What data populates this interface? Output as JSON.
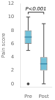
{
  "chart_data": {
    "type": "box",
    "categories": [
      "Pre",
      "Post"
    ],
    "boxes": [
      {
        "whisker_low": 5.0,
        "q1": 6.0,
        "median": 7.0,
        "q3": 8.0,
        "whisker_high": 10.0,
        "fliers": [
          0.0
        ]
      },
      {
        "whisker_low": 0.0,
        "q1": 2.0,
        "median": 3.0,
        "q3": 4.0,
        "whisker_high": 9.0
      }
    ],
    "ylabel": "Pain score",
    "annotation": "P<0.001",
    "color": "#72c1d8",
    "ylim": [
      -0.5,
      12
    ],
    "yticks": [
      0,
      2,
      4,
      6,
      8,
      10,
      12
    ],
    "grid": false
  }
}
